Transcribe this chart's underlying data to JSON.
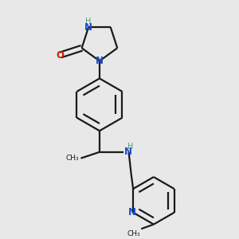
{
  "bg_color": "#e8e8e8",
  "bond_color": "#1a1a1a",
  "N_color": "#1a4acc",
  "O_color": "#cc2200",
  "NH_color": "#4a9a8a",
  "line_width": 1.6,
  "figsize": [
    3.0,
    3.0
  ],
  "dpi": 100,
  "xlim": [
    0.1,
    0.9
  ],
  "ylim": [
    0.05,
    0.98
  ]
}
